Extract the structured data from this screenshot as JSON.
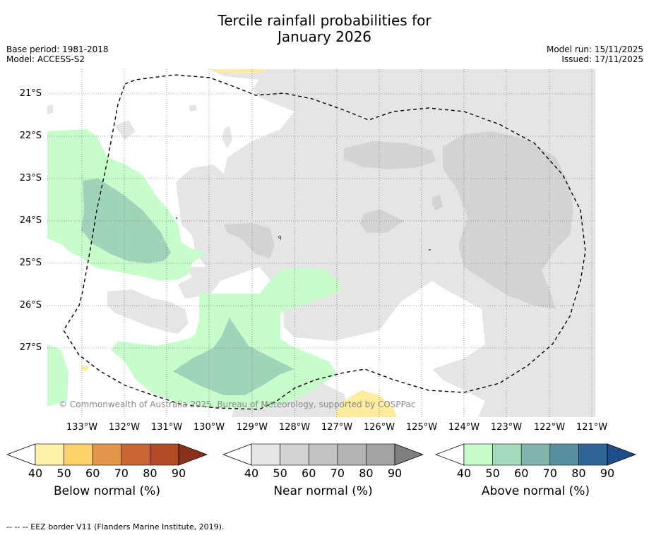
{
  "title": {
    "line1": "Tercile rainfall probabilities for",
    "line2": "January 2026"
  },
  "meta_left": {
    "base_period": "Base period: 1981-2018",
    "model": "Model: ACCESS-S2"
  },
  "meta_right": {
    "model_run": "Model run: 15/11/2025",
    "issued": "Issued: 17/11/2025"
  },
  "map": {
    "latitude_labels": [
      "21°S",
      "22°S",
      "23°S",
      "24°S",
      "25°S",
      "26°S",
      "27°S"
    ],
    "longitude_labels": [
      "133°W",
      "132°W",
      "131°W",
      "130°W",
      "129°W",
      "128°W",
      "127°W",
      "126°W",
      "125°W",
      "124°W",
      "123°W",
      "122°W",
      "121°W"
    ],
    "copyright": "© Commonwealth of Australia 2025, Bureau of Meteorology, supported by COSPPac",
    "colors": {
      "near_40": "#e5e5e5",
      "near_50": "#d3d3d3",
      "above_40": "#c7fdcb",
      "above_60": "#9fd4bb",
      "below_40": "#ffeb9c",
      "eez_line": "#000000"
    }
  },
  "colorbars": [
    {
      "title": "Below normal (%)",
      "ticks": [
        "40",
        "50",
        "60",
        "70",
        "80",
        "90"
      ],
      "colors": [
        "#fff1a8",
        "#fdd06a",
        "#e29649",
        "#cc6534",
        "#b34b27",
        "#8c2f1b"
      ]
    },
    {
      "title": "Near normal (%)",
      "ticks": [
        "40",
        "50",
        "60",
        "70",
        "80",
        "90"
      ],
      "colors": [
        "#e5e5e5",
        "#d3d3d3",
        "#c3c3c3",
        "#b3b3b3",
        "#a3a3a3",
        "#7f7f7f"
      ]
    },
    {
      "title": "Above normal (%)",
      "ticks": [
        "40",
        "50",
        "60",
        "70",
        "80",
        "90"
      ],
      "colors": [
        "#c7fdcb",
        "#a3dbbc",
        "#80b4ad",
        "#5791a0",
        "#2f6597",
        "#1c4f87"
      ]
    }
  ],
  "footer": "--  --  -- EEZ border V11 (Flanders Marine Institute, 2019)."
}
